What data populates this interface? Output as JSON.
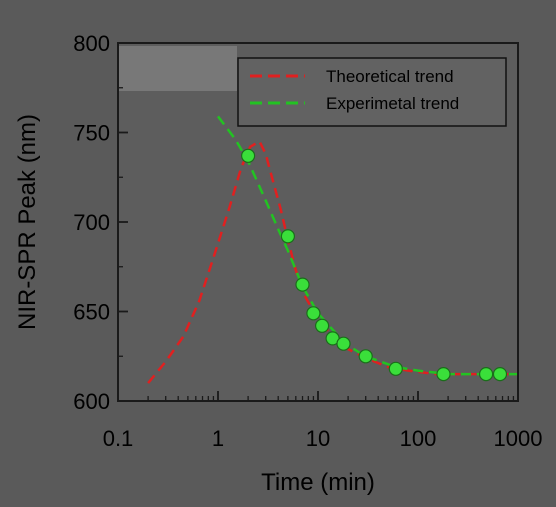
{
  "chart_data": {
    "type": "line",
    "title": "",
    "xlabel": "Time (min)",
    "ylabel": "NIR-SPR Peak (nm)",
    "xscale": "log",
    "xlim": [
      0.1,
      1000
    ],
    "ylim": [
      600,
      800
    ],
    "x_ticks": [
      0.1,
      1,
      10,
      100,
      1000
    ],
    "x_tick_labels": [
      "0.1",
      "1",
      "10",
      "100",
      "1000"
    ],
    "y_ticks": [
      600,
      650,
      700,
      750,
      800
    ],
    "y_tick_labels": [
      "600",
      "650",
      "700",
      "750",
      "800"
    ],
    "grid": false,
    "legend_position": "top-right",
    "series": [
      {
        "name": "Theoretical trend",
        "style": "dashed",
        "color": "#e02020",
        "x": [
          0.2,
          0.3,
          0.45,
          0.65,
          0.9,
          1.3,
          1.7,
          2.1,
          2.6,
          3.0,
          3.5,
          4.2,
          5.0,
          6.0,
          7.5,
          10,
          14,
          20,
          30,
          50,
          80,
          150,
          300,
          600,
          1000
        ],
        "y": [
          610,
          622,
          636,
          656,
          680,
          708,
          730,
          742,
          745,
          738,
          724,
          708,
          690,
          673,
          658,
          646,
          636,
          629,
          624,
          619,
          617,
          615,
          615,
          615,
          615
        ]
      },
      {
        "name": "Experimetal trend",
        "style": "dashed",
        "color": "#22c322",
        "x": [
          1,
          1.5,
          2,
          3,
          4,
          5,
          7,
          10,
          15,
          20,
          30,
          60,
          100,
          200,
          500,
          1000
        ],
        "y": [
          759,
          746,
          734,
          712,
          696,
          684,
          664,
          649,
          638,
          631,
          625,
          619,
          617,
          615,
          615,
          615
        ]
      },
      {
        "name": "",
        "style": "markers",
        "color": "#3adf3a",
        "x": [
          2,
          5,
          7,
          9,
          11,
          14,
          18,
          30,
          60,
          180,
          480,
          660
        ],
        "y": [
          737,
          692,
          665,
          649,
          642,
          635,
          632,
          625,
          618,
          615,
          615,
          615
        ]
      }
    ]
  },
  "colors": {
    "background": "#5a5a5a",
    "plot_background": "#5d5d5d",
    "axis": "#1a1a1a",
    "legend_background": "#626262",
    "legend_patch": "#787878"
  }
}
